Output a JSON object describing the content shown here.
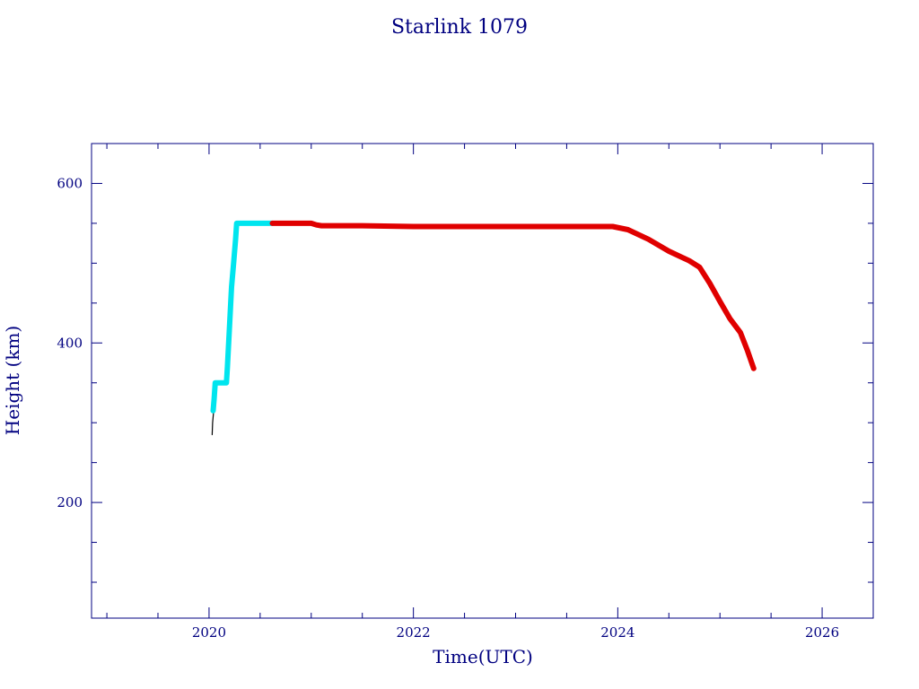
{
  "colors": {
    "axis": "#000080",
    "launch_phase": "#00e5ee",
    "operational": "#e00000",
    "transfer": "#000000"
  },
  "chart_data": {
    "type": "line",
    "title": "Starlink 1079",
    "xlabel": "Time(UTC)",
    "ylabel": "Height (km)",
    "xlim": [
      2018.85,
      2026.5
    ],
    "ylim": [
      55,
      650
    ],
    "x_ticks": [
      2020,
      2022,
      2024,
      2026
    ],
    "x_tick_labels": [
      "2020",
      "2022",
      "2024",
      "2026"
    ],
    "y_ticks": [
      200,
      400,
      600
    ],
    "y_tick_labels": [
      "200",
      "400",
      "600"
    ],
    "grid": false,
    "legend": "none",
    "series": [
      {
        "color": "#000000",
        "x": [
          2020.03,
          2020.035,
          2020.045
        ],
        "y": [
          285,
          300,
          315
        ]
      },
      {
        "color": "#00e5ee",
        "x": [
          2020.04,
          2020.05,
          2020.06,
          2020.1,
          2020.17,
          2020.18,
          2020.2,
          2020.22,
          2020.24,
          2020.26,
          2020.27,
          2020.3,
          2020.4,
          2020.5,
          2020.62
        ],
        "y": [
          315,
          330,
          350,
          350,
          350,
          370,
          420,
          470,
          500,
          530,
          550,
          550,
          550,
          550,
          550
        ]
      },
      {
        "color": "#e00000",
        "x": [
          2020.62,
          2020.8,
          2021.0,
          2021.05,
          2021.1,
          2021.5,
          2022.0,
          2022.5,
          2023.0,
          2023.5,
          2023.95,
          2024.1,
          2024.3,
          2024.5,
          2024.7,
          2024.8,
          2024.9,
          2025.0,
          2025.1,
          2025.2,
          2025.27,
          2025.33
        ],
        "y": [
          550,
          550,
          550,
          548,
          547,
          547,
          546,
          546,
          546,
          546,
          546,
          542,
          530,
          515,
          503,
          495,
          475,
          452,
          430,
          413,
          390,
          368
        ]
      }
    ]
  }
}
